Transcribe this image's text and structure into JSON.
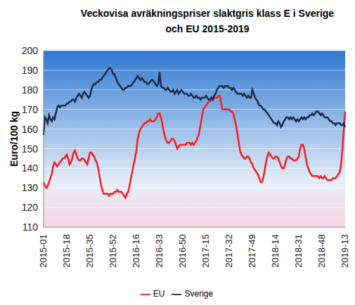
{
  "chart_data": {
    "type": "line",
    "title": "Veckovisa avräkningspriser slaktgris klass E i Sverige och EU 2015-2019",
    "y_label": "Euro/100 kg",
    "categories": [
      "2015-01",
      null,
      null,
      null,
      null,
      null,
      null,
      null,
      null,
      null,
      null,
      null,
      null,
      null,
      null,
      null,
      null,
      "2015-18",
      null,
      null,
      null,
      null,
      null,
      null,
      null,
      null,
      null,
      null,
      null,
      null,
      null,
      null,
      null,
      null,
      "2015-35",
      null,
      null,
      null,
      null,
      null,
      null,
      null,
      null,
      null,
      null,
      null,
      null,
      null,
      null,
      null,
      null,
      "2015-52",
      null,
      null,
      null,
      null,
      null,
      null,
      null,
      null,
      null,
      null,
      null,
      null,
      null,
      null,
      null,
      null,
      "2016-16",
      null,
      null,
      null,
      null,
      null,
      null,
      null,
      null,
      null,
      null,
      null,
      null,
      null,
      null,
      null,
      null,
      "2016-33",
      null,
      null,
      null,
      null,
      null,
      null,
      null,
      null,
      null,
      null,
      null,
      null,
      null,
      null,
      null,
      null,
      "2016-50",
      null,
      null,
      null,
      null,
      null,
      null,
      null,
      null,
      null,
      null,
      null,
      null,
      null,
      null,
      null,
      null,
      "2017-15",
      null,
      null,
      null,
      null,
      null,
      null,
      null,
      null,
      null,
      null,
      null,
      null,
      null,
      null,
      null,
      null,
      "2017-32",
      null,
      null,
      null,
      null,
      null,
      null,
      null,
      null,
      null,
      null,
      null,
      null,
      null,
      null,
      null,
      null,
      "2017-49",
      null,
      null,
      null,
      null,
      null,
      null,
      null,
      null,
      null,
      null,
      null,
      null,
      null,
      null,
      null,
      null,
      "2018-14",
      null,
      null,
      null,
      null,
      null,
      null,
      null,
      null,
      null,
      null,
      null,
      null,
      null,
      null,
      null,
      null,
      "2018-31",
      null,
      null,
      null,
      null,
      null,
      null,
      null,
      null,
      null,
      null,
      null,
      null,
      null,
      null,
      null,
      null,
      "2018-48",
      null,
      null,
      null,
      null,
      null,
      null,
      null,
      null,
      null,
      null,
      null,
      null,
      null,
      null,
      null,
      null,
      "2019-13"
    ],
    "series": [
      {
        "name": "EU",
        "color": "#ff1a1a",
        "values": [
          133,
          131,
          130,
          131,
          133,
          135,
          137,
          141,
          143,
          142,
          141,
          142,
          143,
          144,
          145,
          145,
          146,
          147,
          145,
          142,
          143,
          145,
          148,
          149,
          147,
          145,
          144,
          144,
          145,
          145,
          144,
          143,
          142,
          145,
          148,
          148,
          147,
          146,
          144,
          143,
          140,
          136,
          132,
          129,
          127,
          127,
          127,
          127,
          126,
          127,
          127,
          127,
          128,
          128,
          129,
          128,
          128,
          128,
          127,
          126,
          125,
          127,
          128,
          131,
          135,
          138,
          142,
          145,
          149,
          155,
          158,
          160,
          161,
          162,
          163,
          163,
          164,
          164,
          165,
          164,
          164,
          164,
          165,
          166,
          168,
          168,
          166,
          163,
          159,
          156,
          154,
          153,
          153,
          154,
          155,
          155,
          154,
          152,
          150,
          151,
          152,
          152,
          152,
          152,
          152,
          153,
          153,
          153,
          152,
          153,
          152,
          153,
          154,
          156,
          158,
          162,
          166,
          170,
          171,
          172,
          173,
          174,
          174,
          175,
          175,
          176,
          176,
          176,
          177,
          177,
          174,
          170,
          170,
          170,
          170,
          170,
          170,
          169,
          169,
          168,
          165,
          162,
          158,
          153,
          149,
          147,
          146,
          145,
          145,
          146,
          146,
          145,
          143,
          142,
          140,
          139,
          138,
          137,
          135,
          133,
          133,
          135,
          139,
          143,
          146,
          148,
          147,
          146,
          145,
          145,
          146,
          146,
          145,
          143,
          141,
          140,
          140,
          142,
          145,
          146,
          146,
          145,
          145,
          144,
          144,
          144,
          145,
          146,
          150,
          152,
          152,
          150,
          146,
          142,
          140,
          138,
          137,
          136,
          136,
          136,
          136,
          136,
          135,
          136,
          135,
          135,
          136,
          135,
          134,
          134,
          134,
          134,
          135,
          135,
          135,
          136,
          137,
          138,
          142,
          150,
          160,
          169
        ]
      },
      {
        "name": "Sverige",
        "color": "#1c2a48",
        "values": [
          157,
          166,
          165,
          163,
          167,
          165,
          164,
          166,
          165,
          168,
          171,
          172,
          171,
          172,
          172,
          172,
          172,
          173,
          173,
          174,
          174,
          175,
          175,
          174,
          176,
          177,
          178,
          177,
          176,
          178,
          179,
          178,
          177,
          176,
          177,
          180,
          182,
          183,
          183,
          184,
          184,
          185,
          185,
          186,
          187,
          188,
          189,
          190,
          191,
          191,
          190,
          188,
          188,
          186,
          184,
          183,
          182,
          181,
          180,
          180,
          181,
          181,
          182,
          182,
          182,
          183,
          184,
          185,
          186,
          187,
          186,
          185,
          186,
          185,
          184,
          184,
          183,
          183,
          184,
          185,
          185,
          184,
          183,
          182,
          183,
          189,
          182,
          181,
          181,
          180,
          180,
          181,
          180,
          179,
          179,
          180,
          178,
          179,
          180,
          178,
          179,
          180,
          179,
          178,
          178,
          178,
          177,
          177,
          178,
          177,
          176,
          176,
          177,
          176,
          176,
          175,
          176,
          176,
          176,
          177,
          176,
          175,
          175,
          176,
          175,
          177,
          178,
          180,
          181,
          182,
          182,
          182,
          181,
          182,
          182,
          182,
          181,
          181,
          180,
          181,
          180,
          179,
          178,
          178,
          178,
          178,
          177,
          178,
          177,
          176,
          177,
          176,
          176,
          180,
          178,
          176,
          175,
          174,
          172,
          172,
          171,
          170,
          170,
          169,
          168,
          167,
          166,
          165,
          164,
          163,
          163,
          162,
          164,
          163,
          161,
          162,
          164,
          165,
          166,
          166,
          165,
          166,
          165,
          166,
          165,
          164,
          165,
          164,
          165,
          166,
          165,
          166,
          165,
          166,
          166,
          167,
          167,
          168,
          167,
          168,
          169,
          169,
          168,
          167,
          168,
          167,
          166,
          166,
          166,
          165,
          164,
          164,
          163,
          163,
          162,
          163,
          163,
          163,
          162,
          162,
          163,
          161
        ]
      }
    ],
    "ylim": [
      110,
      200
    ],
    "yticks": [
      110,
      120,
      130,
      140,
      150,
      160,
      170,
      180,
      190,
      200
    ],
    "grid": true,
    "legend": "bottom"
  }
}
